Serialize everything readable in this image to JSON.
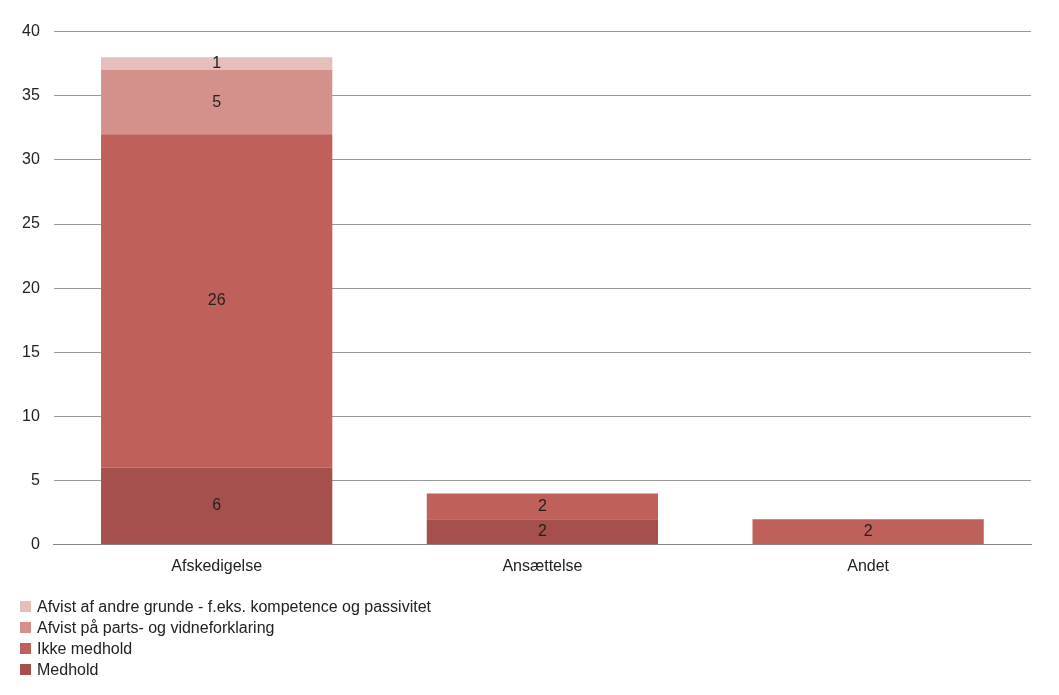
{
  "chart_data": {
    "type": "bar",
    "stacked": true,
    "categories": [
      "Afskedigelse",
      "Ansættelse",
      "Andet"
    ],
    "series": [
      {
        "name": "Medhold",
        "color": "#a5504c",
        "values": [
          6,
          2,
          null
        ]
      },
      {
        "name": "Ikke medhold",
        "color": "#c0605a",
        "values": [
          26,
          2,
          2
        ]
      },
      {
        "name": "Afvist på parts- og vidneforklaring",
        "color": "#d4918c",
        "values": [
          5,
          null,
          null
        ]
      },
      {
        "name": "Afvist af andre grunde - f.eks. kompetence og passivitet",
        "color": "#e6bfbd",
        "values": [
          1,
          null,
          null
        ]
      }
    ],
    "ylim": [
      0,
      40
    ],
    "yticks": [
      0,
      5,
      10,
      15,
      20,
      25,
      30,
      35,
      40
    ],
    "grid": "y",
    "legend": "bottom",
    "data_labels": true
  }
}
